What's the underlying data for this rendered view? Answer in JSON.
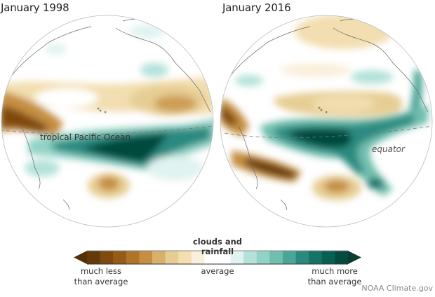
{
  "panels": [
    {
      "title": "January 1998",
      "annotation": "tropical Pacific Ocean"
    },
    {
      "title": "January 2016",
      "annotation": "equator"
    }
  ],
  "colorbar": {
    "title": "clouds and rainfall",
    "label_low": "much less than average",
    "label_low_line1": "much less",
    "label_low_line2": "than average",
    "label_mid": "average",
    "label_high_line1": "much more",
    "label_high_line2": "than average",
    "colors": [
      "#543005",
      "#643a0a",
      "#7f4a10",
      "#955b17",
      "#ae7428",
      "#c58e42",
      "#d8b069",
      "#e6cd93",
      "#f2deb0",
      "#f9f0db",
      "#ffffff",
      "#ffffff",
      "#e0f3f0",
      "#b4e2da",
      "#93d3c6",
      "#6fbeae",
      "#4ba597",
      "#2a8a80",
      "#167366",
      "#085f54",
      "#054a3e",
      "#0a3d30"
    ]
  },
  "credit": "NOAA Climate.gov",
  "colors": {
    "brown_dark": "#643a0a",
    "brown_mid": "#c58e42",
    "brown_light": "#e6cd93",
    "cream": "#f2deb0",
    "teal_light": "#b4e2da",
    "teal_mid": "#4ba597",
    "teal_dark": "#054a3e"
  }
}
